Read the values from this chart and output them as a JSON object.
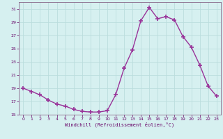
{
  "x": [
    0,
    1,
    2,
    3,
    4,
    5,
    6,
    7,
    8,
    9,
    10,
    11,
    12,
    13,
    14,
    15,
    16,
    17,
    18,
    19,
    20,
    21,
    22,
    23
  ],
  "y": [
    19.0,
    18.5,
    18.0,
    17.2,
    16.6,
    16.3,
    15.8,
    15.5,
    15.4,
    15.4,
    15.6,
    18.0,
    22.0,
    24.8,
    29.2,
    31.2,
    29.5,
    29.8,
    29.3,
    26.8,
    25.2,
    22.5,
    19.3,
    17.8
  ],
  "line_color": "#993399",
  "marker": "+",
  "markersize": 4,
  "linewidth": 1.0,
  "xlabel": "Windchill (Refroidissement éolien,°C)",
  "xlim": [
    -0.5,
    23.5
  ],
  "ylim": [
    15,
    32
  ],
  "yticks": [
    15,
    17,
    19,
    21,
    23,
    25,
    27,
    29,
    31
  ],
  "xticks": [
    0,
    1,
    2,
    3,
    4,
    5,
    6,
    7,
    8,
    9,
    10,
    11,
    12,
    13,
    14,
    15,
    16,
    17,
    18,
    19,
    20,
    21,
    22,
    23
  ],
  "bg_color": "#d6f0f0",
  "grid_color": "#bbdddd",
  "tick_color": "#660066",
  "label_color": "#660066",
  "spine_color": "#886688"
}
